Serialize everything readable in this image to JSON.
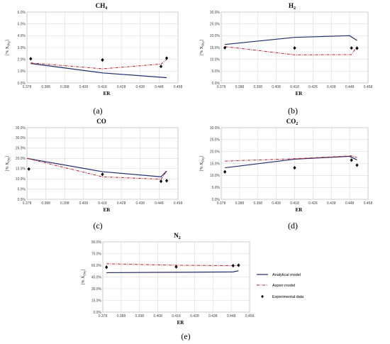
{
  "colors": {
    "analytical": "#1f2a6b",
    "aspen": "#c0202a",
    "experimental": "#000000",
    "grid": "#d9d9d9",
    "axis": "#bfbfbf"
  },
  "legend": {
    "analytical": "Analytical model",
    "aspen": "Aspen model",
    "experimental": "Experimental data"
  },
  "chart_data": [
    {
      "id": "a",
      "type": "line",
      "panel_label": "(a)",
      "title": "CH",
      "title_sub": "4",
      "xlabel": "ER",
      "ylabel": "[% X",
      "ylabel_sub": "Dry",
      "ylabel_end": "]",
      "xlim": [
        0.378,
        0.458
      ],
      "ylim": [
        0,
        6
      ],
      "y_step": 1,
      "xticks": [
        "0.378",
        "0.388",
        "0.398",
        "0.408",
        "0.418",
        "0.428",
        "0.438",
        "0.448",
        "0.458"
      ],
      "yticks": [
        "0.0%",
        "1.0%",
        "2.0%",
        "3.0%",
        "4.0%",
        "5.0%",
        "6.0%"
      ],
      "series": [
        {
          "key": "analytical",
          "style": "solid",
          "x": [
            0.38,
            0.418,
            0.452
          ],
          "y": [
            1.65,
            0.85,
            0.45
          ]
        },
        {
          "key": "aspen",
          "style": "dashdot",
          "x": [
            0.38,
            0.418,
            0.449,
            0.452
          ],
          "y": [
            1.7,
            1.2,
            1.6,
            2.0
          ]
        },
        {
          "key": "experimental",
          "style": "marker",
          "x": [
            0.38,
            0.418,
            0.449,
            0.452
          ],
          "y": [
            2.05,
            1.95,
            1.4,
            2.1
          ]
        }
      ]
    },
    {
      "id": "b",
      "type": "line",
      "panel_label": "(b)",
      "title": "H",
      "title_sub": "2",
      "xlabel": "ER",
      "ylabel": "[% X",
      "ylabel_sub": "Dry",
      "ylabel_end": "]",
      "xlim": [
        0.378,
        0.458
      ],
      "ylim": [
        0,
        30
      ],
      "y_step": 5,
      "xticks": [
        "0.378",
        "0.388",
        "0.398",
        "0.408",
        "0.418",
        "0.428",
        "0.438",
        "0.448",
        "0.458"
      ],
      "yticks": [
        "0.0%",
        "5.0%",
        "10.0%",
        "15.0%",
        "20.0%",
        "25.0%",
        "30.0%"
      ],
      "series": [
        {
          "key": "analytical",
          "style": "solid",
          "x": [
            0.38,
            0.418,
            0.448,
            0.452
          ],
          "y": [
            16.3,
            19.3,
            20.0,
            18.0
          ]
        },
        {
          "key": "aspen",
          "style": "dashdot",
          "x": [
            0.38,
            0.418,
            0.449,
            0.452
          ],
          "y": [
            15.4,
            11.9,
            12.0,
            15.5
          ]
        },
        {
          "key": "experimental",
          "style": "marker",
          "x": [
            0.38,
            0.418,
            0.449,
            0.452
          ],
          "y": [
            14.9,
            14.8,
            14.8,
            14.7
          ]
        }
      ]
    },
    {
      "id": "c",
      "type": "line",
      "panel_label": "(c)",
      "title": "CO",
      "title_sub": "",
      "xlabel": "ER",
      "ylabel": "[% X",
      "ylabel_sub": "Dry",
      "ylabel_end": "]",
      "xlim": [
        0.378,
        0.458
      ],
      "ylim": [
        0,
        35
      ],
      "y_step": 5,
      "xticks": [
        "0.378",
        "0.388",
        "0.398",
        "0.408",
        "0.418",
        "0.428",
        "0.438",
        "0.448",
        "0.458"
      ],
      "yticks": [
        "0.0%",
        "5.0%",
        "10.0%",
        "15.0%",
        "20.0%",
        "25.0%",
        "30.0%",
        "35.0%"
      ],
      "series": [
        {
          "key": "analytical",
          "style": "solid",
          "x": [
            0.378,
            0.418,
            0.449,
            0.452
          ],
          "y": [
            20.0,
            13.5,
            11.0,
            13.8
          ]
        },
        {
          "key": "aspen",
          "style": "dashdot",
          "x": [
            0.378,
            0.418,
            0.449,
            0.452
          ],
          "y": [
            20.0,
            11.0,
            9.8,
            13.8
          ]
        },
        {
          "key": "experimental",
          "style": "marker",
          "x": [
            0.379,
            0.418,
            0.449,
            0.452
          ],
          "y": [
            14.8,
            12.2,
            8.8,
            9.1
          ]
        }
      ]
    },
    {
      "id": "d",
      "type": "line",
      "panel_label": "(d)",
      "title": "CO",
      "title_sub": "2",
      "xlabel": "ER",
      "ylabel": "[% X",
      "ylabel_sub": "Dry",
      "ylabel_end": "]",
      "xlim": [
        0.378,
        0.458
      ],
      "ylim": [
        0,
        30
      ],
      "y_step": 5,
      "xticks": [
        "0.378",
        "0.388",
        "0.398",
        "0.408",
        "0.418",
        "0.428",
        "0.438",
        "0.448",
        "0.458"
      ],
      "yticks": [
        "0.0%",
        "5.0%",
        "10.0%",
        "15.0%",
        "20.0%",
        "25.0%",
        "30.0%"
      ],
      "series": [
        {
          "key": "analytical",
          "style": "solid",
          "x": [
            0.38,
            0.418,
            0.448,
            0.452
          ],
          "y": [
            13.2,
            16.8,
            18.0,
            16.5
          ]
        },
        {
          "key": "aspen",
          "style": "dashdot",
          "x": [
            0.38,
            0.418,
            0.449,
            0.452
          ],
          "y": [
            16.0,
            17.0,
            18.2,
            17.5
          ]
        },
        {
          "key": "experimental",
          "style": "marker",
          "x": [
            0.38,
            0.418,
            0.449,
            0.452
          ],
          "y": [
            11.5,
            13.2,
            16.4,
            14.3
          ]
        }
      ]
    },
    {
      "id": "e",
      "type": "line",
      "panel_label": "(e)",
      "title": "N",
      "title_sub": "2",
      "xlabel": "ER",
      "ylabel": "[% X",
      "ylabel_sub": "Dry",
      "ylabel_end": "]",
      "xlim": [
        0.378,
        0.458
      ],
      "ylim": [
        0,
        90
      ],
      "y_step": 15,
      "xticks": [
        "0.378",
        "0.388",
        "0.398",
        "0.408",
        "0.418",
        "0.428",
        "0.438",
        "0.448",
        "0.458"
      ],
      "yticks": [
        "0.0%",
        "15.0%",
        "30.0%",
        "45.0%",
        "60.0%",
        "75.0%",
        "90.0%"
      ],
      "series": [
        {
          "key": "analytical",
          "style": "solid",
          "x": [
            0.38,
            0.418,
            0.449,
            0.452
          ],
          "y": [
            50.5,
            51.0,
            51.5,
            53.0
          ]
        },
        {
          "key": "aspen",
          "style": "dashdot",
          "x": [
            0.38,
            0.418,
            0.449,
            0.452
          ],
          "y": [
            62.0,
            60.0,
            59.5,
            59.5
          ]
        },
        {
          "key": "experimental",
          "style": "marker",
          "x": [
            0.38,
            0.418,
            0.449,
            0.452
          ],
          "y": [
            57.5,
            58.0,
            59.5,
            60.0
          ]
        }
      ]
    }
  ]
}
